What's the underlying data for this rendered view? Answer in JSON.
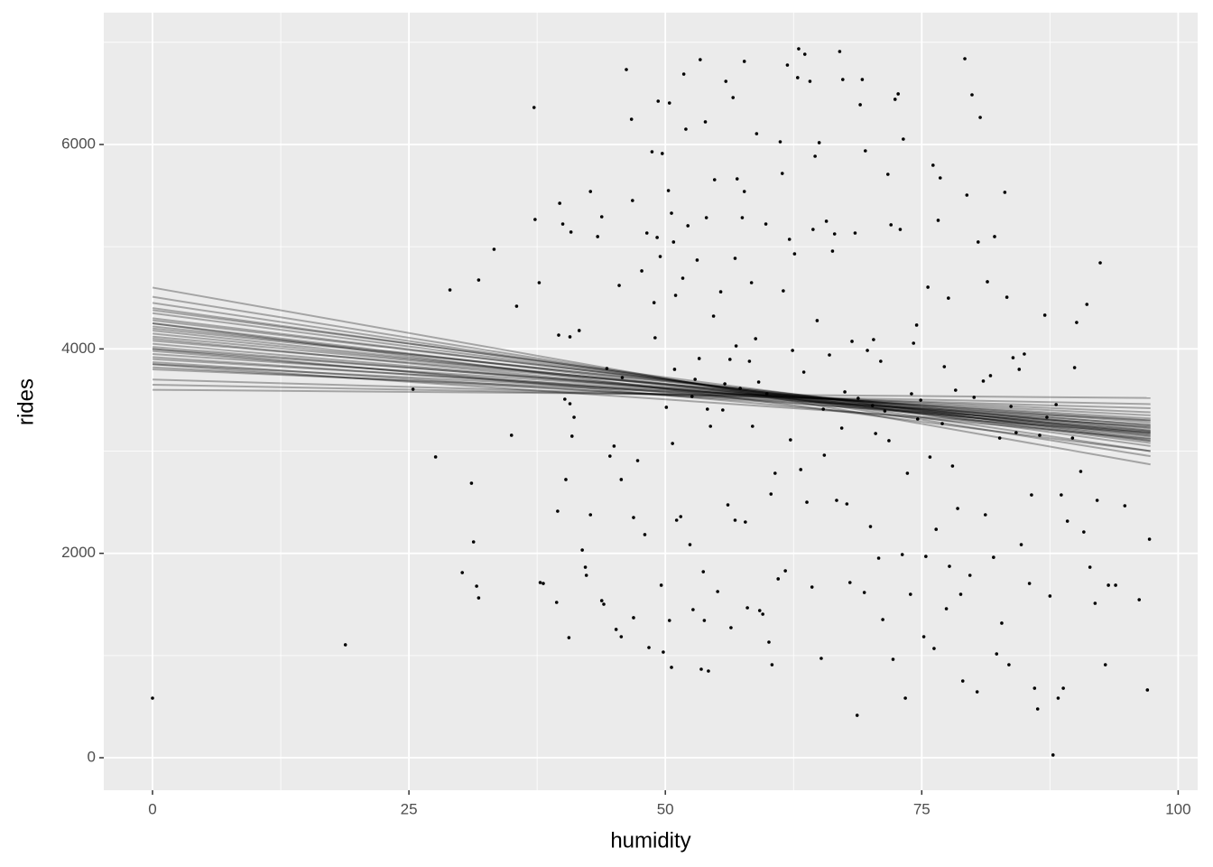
{
  "chart_data": {
    "type": "scatter",
    "xlabel": "humidity",
    "ylabel": "rides",
    "xlim": [
      -4.75,
      101.9
    ],
    "ylim": [
      -318,
      7290
    ],
    "xticks": [
      0,
      25,
      50,
      75,
      100
    ],
    "yticks": [
      0,
      2000,
      4000,
      6000
    ],
    "xminor": [
      12.5,
      37.5,
      62.5,
      87.5
    ],
    "yminor": [
      1000,
      3000,
      5000,
      7000
    ],
    "grid": true,
    "panel_color": "#ebebeb",
    "point_color": "#000000",
    "line_color": "#000000",
    "line_opacity": 0.3,
    "points": {
      "x": [
        0,
        18.8,
        25.4,
        27.6,
        29,
        30.2,
        31.1,
        31.3,
        31.6,
        31.8,
        31.8,
        33.3,
        35,
        35.5,
        37.2,
        37.3,
        37.7,
        37.8,
        38.1,
        39.4,
        39.5,
        39.6,
        39.7,
        40,
        40.2,
        40.3,
        40.6,
        40.7,
        40.7,
        40.8,
        40.9,
        41.1,
        41.6,
        41.9,
        42.2,
        42.3,
        42.7,
        42.7,
        43.4,
        43.8,
        43.8,
        44,
        44.3,
        44.6,
        45,
        45.2,
        45.5,
        45.7,
        45.7,
        45.8,
        46.2,
        46.7,
        46.8,
        46.9,
        46.9,
        47.3,
        47.7,
        48,
        48.2,
        48.4,
        48.7,
        48.9,
        49,
        49.2,
        49.3,
        49.5,
        49.6,
        49.7,
        49.8,
        50.1,
        50.3,
        50.4,
        50.4,
        50.6,
        50.6,
        50.7,
        50.8,
        50.9,
        51,
        51.1,
        51.5,
        51.7,
        51.8,
        52,
        52.2,
        52.4,
        52.6,
        52.7,
        52.9,
        53.1,
        53.3,
        53.4,
        53.5,
        53.7,
        53.8,
        53.9,
        54,
        54.1,
        54.2,
        54.4,
        54.7,
        54.8,
        55.1,
        55.4,
        55.6,
        55.8,
        55.9,
        56.1,
        56.3,
        56.4,
        56.6,
        56.8,
        56.8,
        56.9,
        57,
        57.3,
        57.5,
        57.7,
        57.7,
        57.8,
        58,
        58.2,
        58.4,
        58.5,
        58.8,
        58.9,
        59.1,
        59.2,
        59.5,
        59.8,
        59.9,
        60.1,
        60.3,
        60.4,
        60.7,
        61,
        61.2,
        61.4,
        61.5,
        61.7,
        61.9,
        62.1,
        62.2,
        62.4,
        62.6,
        62.9,
        63,
        63.2,
        63.5,
        63.6,
        63.8,
        64.1,
        64.3,
        64.4,
        64.6,
        64.8,
        65,
        65.2,
        65.4,
        65.5,
        65.7,
        66,
        66.3,
        66.5,
        66.7,
        67,
        67.2,
        67.3,
        67.5,
        67.7,
        68,
        68.2,
        68.5,
        68.7,
        68.8,
        69,
        69.2,
        69.4,
        69.5,
        69.7,
        70,
        70.2,
        70.3,
        70.5,
        70.8,
        71,
        71.2,
        71.4,
        71.7,
        71.8,
        72,
        72.2,
        72.4,
        72.7,
        72.9,
        73.1,
        73.2,
        73.4,
        73.6,
        73.9,
        74,
        74.2,
        74.5,
        74.6,
        74.9,
        75.2,
        75.4,
        75.6,
        75.8,
        76.1,
        76.2,
        76.4,
        76.6,
        76.8,
        77,
        77.2,
        77.4,
        77.6,
        77.7,
        78,
        78.3,
        78.5,
        78.8,
        79,
        79.2,
        79.4,
        79.7,
        79.9,
        80.1,
        80.4,
        80.5,
        80.7,
        81,
        81.2,
        81.4,
        81.7,
        82,
        82.1,
        82.3,
        82.6,
        82.8,
        83.1,
        83.3,
        83.5,
        83.7,
        83.9,
        84.2,
        84.5,
        84.7,
        85,
        85.5,
        85.7,
        86,
        86.3,
        86.5,
        87,
        87.2,
        87.5,
        87.8,
        88.1,
        88.3,
        88.6,
        88.8,
        89.2,
        89.7,
        89.9,
        90.1,
        90.5,
        90.8,
        91.1,
        91.4,
        91.9,
        92.1,
        92.4,
        92.9,
        93.2,
        93.9,
        94.8,
        96.2,
        97,
        97.2
      ],
      "y": [
        583,
        1105,
        3605,
        2943,
        4577,
        1811,
        2686,
        2112,
        1679,
        4674,
        1564,
        4975,
        3155,
        4418,
        6362,
        5266,
        4648,
        1714,
        1705,
        1520,
        2412,
        4135,
        5425,
        5222,
        3508,
        2722,
        1175,
        3464,
        4118,
        5143,
        3146,
        3331,
        4180,
        2032,
        1864,
        1785,
        5540,
        2377,
        5099,
        5293,
        1537,
        1502,
        3808,
        2951,
        3049,
        1255,
        4621,
        1184,
        2722,
        3720,
        6733,
        6247,
        5452,
        2350,
        1370,
        2907,
        4763,
        2183,
        5134,
        1078,
        5929,
        4453,
        4109,
        5090,
        6424,
        4904,
        1688,
        5912,
        1034,
        3429,
        5549,
        6406,
        1343,
        5328,
        884,
        3075,
        5046,
        3800,
        4524,
        2324,
        2359,
        4692,
        6689,
        6150,
        5205,
        2085,
        3535,
        1449,
        3702,
        4869,
        3906,
        6830,
        866,
        1820,
        1343,
        6221,
        5284,
        3411,
        848,
        3243,
        4321,
        5655,
        1626,
        4559,
        3402,
        3658,
        6618,
        2474,
        3897,
        1272,
        6459,
        4886,
        2324,
        4029,
        5664,
        3614,
        5284,
        5540,
        6813,
        2306,
        1467,
        3879,
        4648,
        3243,
        4100,
        6106,
        3676,
        1440,
        1405,
        5222,
        3561,
        1131,
        2580,
        910,
        2783,
        1750,
        6026,
        5717,
        4568,
        1829,
        6777,
        5072,
        3110,
        3985,
        4930,
        6654,
        6936,
        2819,
        3773,
        6883,
        2500,
        6618,
        1670,
        5169,
        5885,
        4277,
        6018,
        972,
        3411,
        2960,
        5249,
        3941,
        4957,
        5125,
        2518,
        6910,
        3225,
        6636,
        3579,
        2483,
        1714,
        4074,
        5134,
        415,
        3517,
        6389,
        6636,
        1617,
        5938,
        3985,
        2262,
        3446,
        4091,
        3172,
        1953,
        3879,
        1352,
        3393,
        5708,
        3102,
        5214,
        963,
        6442,
        6495,
        5169,
        1988,
        6053,
        583,
        2783,
        1599,
        3561,
        4056,
        4233,
        3314,
        3499,
        1184,
        1970,
        4604,
        2942,
        5797,
        1069,
        2235,
        5258,
        5673,
        3269,
        3826,
        1458,
        4497,
        1873,
        2854,
        3596,
        2439,
        1599,
        751,
        6839,
        5505,
        1785,
        6486,
        3526,
        645,
        5046,
        6265,
        3685,
        2377,
        4657,
        3738,
        1961,
        5099,
        1016,
        3128,
        1317,
        5532,
        4506,
        910,
        3437,
        3914,
        3181,
        3800,
        2085,
        3950,
        1705,
        2571,
        680,
        477,
        3155,
        4330,
        3331,
        1582,
        27,
        3455,
        583,
        2571,
        680,
        2315,
        3128,
        3817,
        4259,
        2801,
        2209,
        4436,
        1864,
        1511,
        2518,
        4842,
        910,
        1688,
        1688,
        2465,
        1546,
        663,
        2138
      ]
    },
    "lines": {
      "x": [
        0,
        97.3
      ],
      "series": [
        {
          "values": [
            4600,
            2870
          ]
        },
        {
          "values": [
            4510,
            2950
          ]
        },
        {
          "values": [
            4450,
            3000
          ]
        },
        {
          "values": [
            4400,
            3050
          ]
        },
        {
          "values": [
            4380,
            3100
          ]
        },
        {
          "values": [
            4350,
            3080
          ]
        },
        {
          "values": [
            4300,
            3120
          ]
        },
        {
          "values": [
            4280,
            3150
          ]
        },
        {
          "values": [
            4250,
            3100
          ]
        },
        {
          "values": [
            4220,
            3170
          ]
        },
        {
          "values": [
            4200,
            3200
          ]
        },
        {
          "values": [
            4180,
            3140
          ]
        },
        {
          "values": [
            4150,
            3180
          ]
        },
        {
          "values": [
            4120,
            3220
          ]
        },
        {
          "values": [
            4100,
            3160
          ]
        },
        {
          "values": [
            4080,
            3250
          ]
        },
        {
          "values": [
            4050,
            3200
          ]
        },
        {
          "values": [
            4020,
            3230
          ]
        },
        {
          "values": [
            4000,
            3280
          ]
        },
        {
          "values": [
            3980,
            3190
          ]
        },
        {
          "values": [
            3950,
            3300
          ]
        },
        {
          "values": [
            3920,
            3260
          ]
        },
        {
          "values": [
            3900,
            3320
          ]
        },
        {
          "values": [
            3870,
            3240
          ]
        },
        {
          "values": [
            3850,
            3350
          ]
        },
        {
          "values": [
            3820,
            3300
          ]
        },
        {
          "values": [
            3800,
            3380
          ]
        },
        {
          "values": [
            3700,
            3420
          ]
        },
        {
          "values": [
            3650,
            3460
          ]
        },
        {
          "values": [
            3600,
            3520
          ]
        },
        {
          "values": [
            3850,
            3180
          ]
        },
        {
          "values": [
            4000,
            3120
          ]
        },
        {
          "values": [
            4250,
            3000
          ]
        }
      ]
    }
  }
}
